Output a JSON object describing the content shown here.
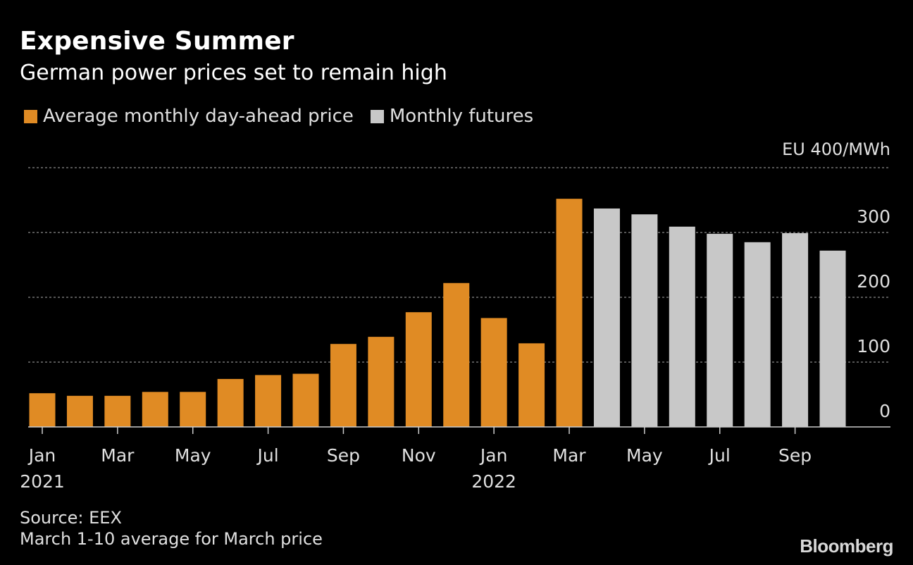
{
  "header": {
    "title": "Expensive Summer",
    "subtitle": "German power prices set to remain high"
  },
  "legend": {
    "items": [
      {
        "label": "Average monthly day-ahead price",
        "color": "#e08b24"
      },
      {
        "label": "Monthly futures",
        "color": "#c8c8c8"
      }
    ]
  },
  "chart_data": {
    "type": "bar",
    "title": "Expensive Summer",
    "subtitle": "German power prices set to remain high",
    "unit_label": "EU 400/MWh",
    "ylim": [
      0,
      400
    ],
    "yticks": [
      0,
      100,
      200,
      300
    ],
    "ytick_labels": [
      "0",
      "100",
      "200",
      "300"
    ],
    "grid": true,
    "categories": [
      "Jan 2021",
      "Feb 2021",
      "Mar 2021",
      "Apr 2021",
      "May 2021",
      "Jun 2021",
      "Jul 2021",
      "Aug 2021",
      "Sep 2021",
      "Oct 2021",
      "Nov 2021",
      "Dec 2021",
      "Jan 2022",
      "Feb 2022",
      "Mar 2022",
      "Apr 2022",
      "May 2022",
      "Jun 2022",
      "Jul 2022",
      "Aug 2022",
      "Sep 2022",
      "Oct 2022"
    ],
    "series": [
      {
        "name": "Average monthly day-ahead price",
        "color": "#e08b24",
        "values": [
          52,
          48,
          48,
          54,
          54,
          74,
          80,
          82,
          128,
          139,
          177,
          222,
          168,
          129,
          352,
          null,
          null,
          null,
          null,
          null,
          null,
          null
        ]
      },
      {
        "name": "Monthly futures",
        "color": "#c8c8c8",
        "values": [
          null,
          null,
          null,
          null,
          null,
          null,
          null,
          null,
          null,
          null,
          null,
          null,
          null,
          null,
          null,
          337,
          328,
          309,
          298,
          285,
          299,
          272
        ]
      }
    ],
    "x_tick_labels": [
      {
        "index": 0,
        "month": "Jan",
        "year": "2021"
      },
      {
        "index": 2,
        "month": "Mar",
        "year": ""
      },
      {
        "index": 4,
        "month": "May",
        "year": ""
      },
      {
        "index": 6,
        "month": "Jul",
        "year": ""
      },
      {
        "index": 8,
        "month": "Sep",
        "year": ""
      },
      {
        "index": 10,
        "month": "Nov",
        "year": ""
      },
      {
        "index": 12,
        "month": "Jan",
        "year": "2022"
      },
      {
        "index": 14,
        "month": "Mar",
        "year": ""
      },
      {
        "index": 16,
        "month": "May",
        "year": ""
      },
      {
        "index": 18,
        "month": "Jul",
        "year": ""
      },
      {
        "index": 20,
        "month": "Sep",
        "year": ""
      }
    ]
  },
  "footer": {
    "source": "Source: EEX",
    "note": "March 1-10 average for March price",
    "brand": "Bloomberg"
  },
  "colors": {
    "background": "#000000",
    "gridline": "#8a8a8a",
    "axis": "#cccccc",
    "text": "#ffffff",
    "secondary_text": "#e0e0e0"
  }
}
